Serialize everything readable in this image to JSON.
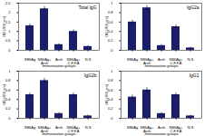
{
  "chart_data": [
    {
      "type": "bar",
      "title": "Total IgG",
      "x_label": "Immunization groups",
      "y_label": "OD (450 nm)",
      "categories": [
        "SB6Ag",
        "SB6Ag+ Arvh",
        "Arvh",
        "SB6Ag+ C.F.F.A",
        "N.S"
      ],
      "values": [
        1.3,
        2.2,
        0.3,
        1.0,
        0.2
      ],
      "errors": [
        0.1,
        0.12,
        0.05,
        0.08,
        0.04
      ],
      "color": "#1b1f6b",
      "ylim": [
        0,
        2.5
      ],
      "yticks": [
        0,
        0.5,
        1,
        1.5,
        2,
        2.5
      ]
    },
    {
      "type": "bar",
      "title": "IgG2a",
      "x_label": "Immunization groups",
      "y_label": "OD (450 nm)",
      "categories": [
        "SB6Ag",
        "SB6Ag+ Arvh",
        "Arvh",
        "SB6Ag+ C.F.F.A",
        "N.S"
      ],
      "values": [
        0.6,
        0.9,
        0.1,
        0.5,
        0.05
      ],
      "errors": [
        0.04,
        0.05,
        0.02,
        0.04,
        0.02
      ],
      "color": "#1b1f6b",
      "ylim": [
        0,
        1
      ],
      "yticks": [
        0,
        0.2,
        0.4,
        0.6,
        0.8,
        1
      ]
    },
    {
      "type": "bar",
      "title": "IgG2b",
      "x_label": "Immunization groups",
      "y_label": "OD (450 nm)",
      "categories": [
        "SB6Ag",
        "SB6Ag+ Arvh",
        "Arvh",
        "SB6Ag+ C.F.F.A",
        "N.S"
      ],
      "values": [
        0.5,
        0.8,
        0.1,
        0.5,
        0.05
      ],
      "errors": [
        0.04,
        0.05,
        0.02,
        0.04,
        0.02
      ],
      "color": "#1b1f6b",
      "ylim": [
        0,
        1
      ],
      "yticks": [
        0,
        0.2,
        0.4,
        0.6,
        0.8,
        1
      ]
    },
    {
      "type": "bar",
      "title": "IgG1",
      "x_label": "Immunization groups",
      "y_label": "OD (450 nm)",
      "categories": [
        "SB6Ag",
        "SB6Ag+ Arvh",
        "Arvh",
        "SB6Ag+ C.F.F.A",
        "N.S"
      ],
      "values": [
        0.45,
        0.6,
        0.1,
        0.5,
        0.05
      ],
      "errors": [
        0.04,
        0.05,
        0.02,
        0.04,
        0.02
      ],
      "color": "#1b1f6b",
      "ylim": [
        0,
        1
      ],
      "yticks": [
        0,
        0.2,
        0.4,
        0.6,
        0.8,
        1
      ]
    }
  ]
}
